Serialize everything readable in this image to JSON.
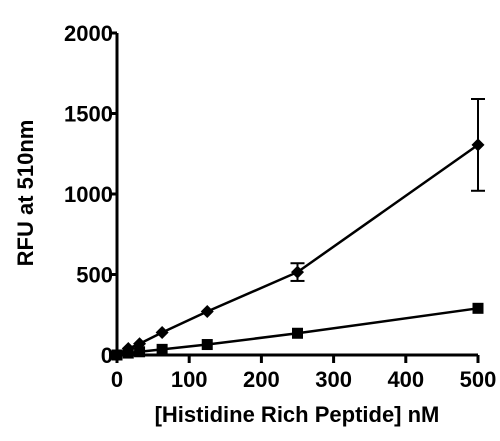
{
  "chart_data": {
    "type": "line",
    "xlabel": "[Histidine Rich Peptide] nM",
    "ylabel": "RFU at 510nm",
    "xlim": [
      0,
      500
    ],
    "ylim": [
      0,
      2000
    ],
    "x_ticks": [
      "0",
      "100",
      "200",
      "300",
      "400",
      "500"
    ],
    "y_ticks": [
      "0",
      "500",
      "1000",
      "1500",
      "2000"
    ],
    "grid": false,
    "legend": "none",
    "series": [
      {
        "marker": "diamond",
        "color": "#000000",
        "points": [
          {
            "x": 0,
            "y": 0
          },
          {
            "x": 15.6,
            "y": 40
          },
          {
            "x": 31.25,
            "y": 70
          },
          {
            "x": 62.5,
            "y": 140
          },
          {
            "x": 125,
            "y": 270
          },
          {
            "x": 250,
            "y": 515,
            "err": 55
          },
          {
            "x": 500,
            "y": 1305,
            "err": 285
          }
        ]
      },
      {
        "marker": "square",
        "color": "#000000",
        "points": [
          {
            "x": 0,
            "y": 0
          },
          {
            "x": 15.6,
            "y": 12
          },
          {
            "x": 31.25,
            "y": 20
          },
          {
            "x": 62.5,
            "y": 35
          },
          {
            "x": 125,
            "y": 65
          },
          {
            "x": 250,
            "y": 135
          },
          {
            "x": 500,
            "y": 290
          }
        ]
      }
    ]
  }
}
